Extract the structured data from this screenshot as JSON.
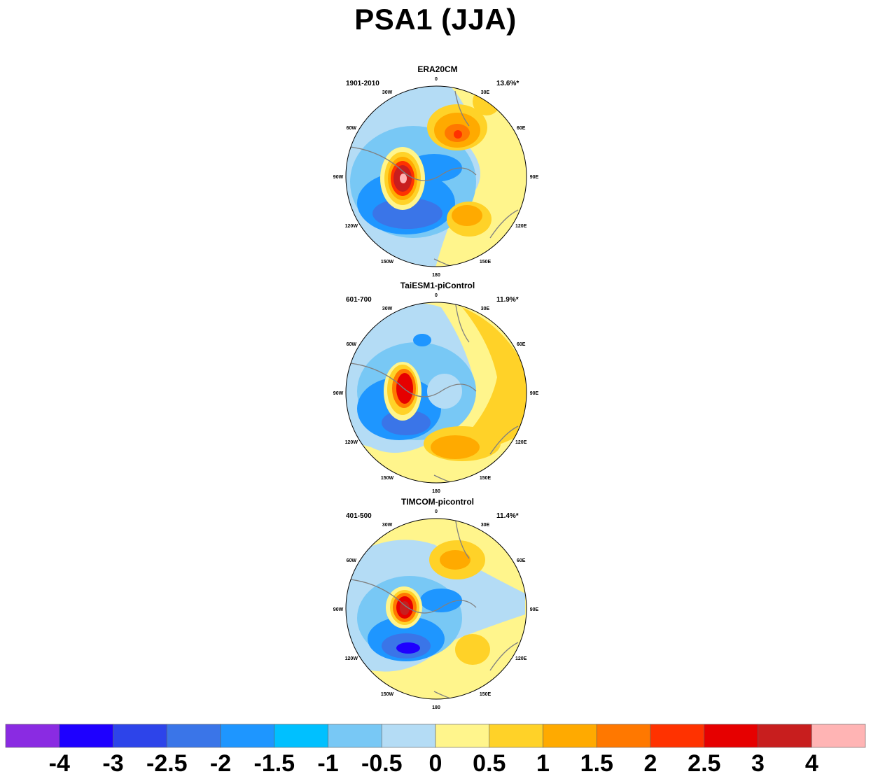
{
  "title": "PSA1 (JJA)",
  "lon_labels": [
    "0",
    "30E",
    "60E",
    "90E",
    "120E",
    "150E",
    "180",
    "150W",
    "120W",
    "90W",
    "60W",
    "30W"
  ],
  "panels": [
    {
      "name": "ERA20CM",
      "period": "1901-2010",
      "variance": "13.6%*"
    },
    {
      "name": "TaiESM1-piControl",
      "period": "601-700",
      "variance": "11.9%*"
    },
    {
      "name": "TIMCOM-picontrol",
      "period": "401-500",
      "variance": "11.4%*"
    }
  ],
  "colorbar": {
    "colors": [
      "#8a2be2",
      "#1e00ff",
      "#2d44ea",
      "#3a75e8",
      "#1e96ff",
      "#00c0ff",
      "#78c8f5",
      "#b4dcf5",
      "#fff58c",
      "#ffd228",
      "#ffaa00",
      "#ff7800",
      "#ff3200",
      "#e60000",
      "#c81e1e",
      "#ffb4b4"
    ],
    "labels": [
      "-4",
      "-3",
      "-2.5",
      "-2",
      "-1.5",
      "-1",
      "-0.5",
      "0",
      "0.5",
      "1",
      "1.5",
      "2",
      "2.5",
      "3",
      "4"
    ]
  }
}
